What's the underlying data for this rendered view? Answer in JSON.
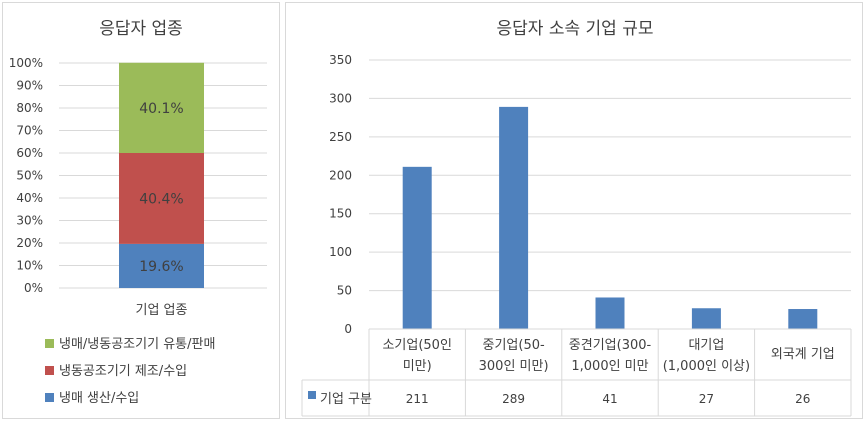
{
  "chart_data": [
    {
      "type": "bar",
      "stacked": true,
      "title": "응답자 업종",
      "categories": [
        "기업 업종"
      ],
      "y_tick_labels": [
        "0%",
        "10%",
        "20%",
        "30%",
        "40%",
        "50%",
        "60%",
        "70%",
        "80%",
        "90%",
        "100%"
      ],
      "ylim": [
        0,
        100
      ],
      "grid": true,
      "legend_position": "bottom",
      "series": [
        {
          "name": "냉매 생산/수입",
          "values": [
            19.6
          ],
          "label": "19.6%",
          "color": "#4f81bd"
        },
        {
          "name": "냉동공조기기 제조/수입",
          "values": [
            40.4
          ],
          "label": "40.4%",
          "color": "#c0504d"
        },
        {
          "name": "냉매/냉동공조기기 유통/판매",
          "values": [
            40.1
          ],
          "label": "40.1%",
          "color": "#9bbb59"
        }
      ]
    },
    {
      "type": "bar",
      "title": "응답자 소속 기업 규모",
      "categories": [
        [
          "소기업(50인",
          "미만)"
        ],
        [
          "중기업(50-",
          "300인 미만)"
        ],
        [
          "중견기업(300-",
          "1,000인 미만"
        ],
        [
          "대기업",
          "(1,000인 이상)"
        ],
        [
          "외국계 기업"
        ]
      ],
      "ylim": [
        0,
        350
      ],
      "y_tick_labels": [
        "0",
        "50",
        "100",
        "150",
        "200",
        "250",
        "300",
        "350"
      ],
      "grid": true,
      "legend_position": "data-table",
      "series": [
        {
          "name": "기업 구분",
          "values": [
            211,
            289,
            41,
            27,
            26
          ],
          "color": "#4f81bd"
        }
      ]
    }
  ]
}
